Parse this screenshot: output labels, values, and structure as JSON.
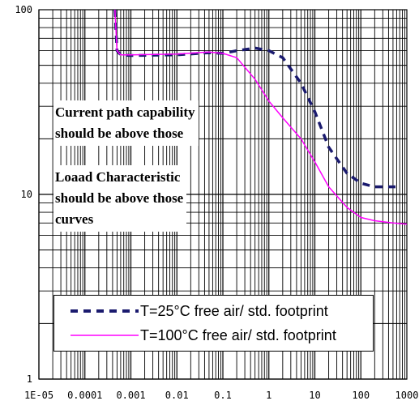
{
  "chart_data": {
    "type": "line",
    "title": "",
    "xlabel": "",
    "ylabel": "",
    "x_scale": "log",
    "y_scale": "log",
    "xlim": [
      1e-05,
      1000
    ],
    "ylim": [
      1,
      100
    ],
    "grid": true,
    "x_tick_labels": [
      "1E-05",
      "0.0001",
      "0.001",
      "0.01",
      "0.1",
      "1",
      "10",
      "100",
      "1000"
    ],
    "y_tick_labels": [
      "1",
      "10",
      "100"
    ],
    "series": [
      {
        "name": "T=25°C   free air/ std. footprint",
        "color": "#1a1a6e",
        "style": "dashed",
        "x": [
          0.00045,
          0.0005,
          0.0006,
          0.001,
          0.01,
          0.05,
          0.1,
          0.2,
          0.5,
          1,
          2,
          5,
          10,
          20,
          50,
          100,
          200,
          500,
          700
        ],
        "y": [
          100,
          60,
          57,
          56.5,
          57,
          58.5,
          58,
          60,
          62,
          60,
          55,
          40,
          28,
          18,
          13,
          11.5,
          11,
          11,
          11
        ]
      },
      {
        "name": "T=100°C free air/ std. footprint",
        "color": "#ff00ff",
        "style": "solid",
        "x": [
          0.00045,
          0.0005,
          0.0006,
          0.001,
          0.01,
          0.05,
          0.1,
          0.2,
          0.5,
          1,
          2,
          5,
          10,
          20,
          50,
          100,
          200,
          500,
          1000
        ],
        "y": [
          100,
          60,
          57,
          57,
          57.5,
          59,
          58,
          55,
          42,
          32,
          26,
          20,
          15,
          11,
          8.5,
          7.5,
          7.2,
          7,
          6.9
        ]
      }
    ],
    "annotations": [
      {
        "lines": [
          "Current path capability",
          "should be above those"
        ]
      },
      {
        "lines": [
          "Loaad Characteristic",
          "should be above those",
          "curves"
        ]
      }
    ],
    "legend_position": "bottom-center"
  }
}
